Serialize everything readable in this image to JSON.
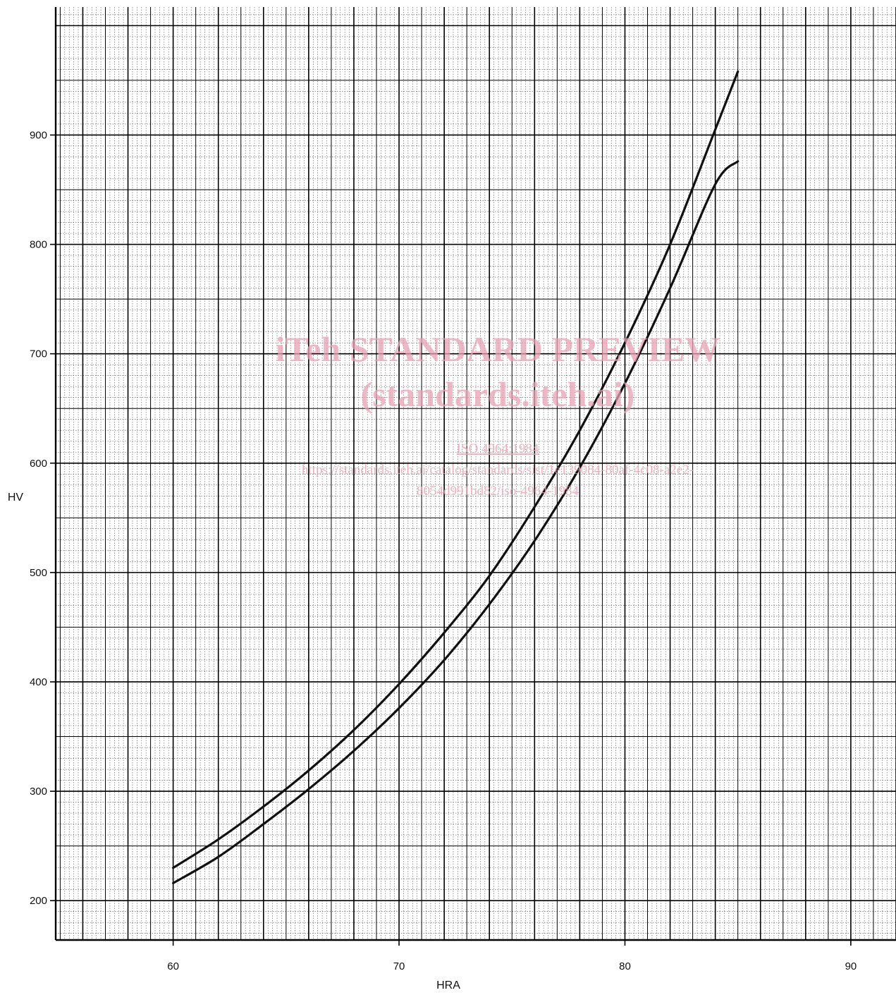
{
  "chart_data": {
    "type": "line",
    "title": "",
    "xlabel": "HRA",
    "ylabel": "HV",
    "xlim": [
      54.8,
      92
    ],
    "ylim": [
      164,
      1017
    ],
    "xticks": [
      60,
      70,
      80,
      90
    ],
    "yticks": [
      200,
      300,
      400,
      500,
      600,
      700,
      800,
      900
    ],
    "grid": true,
    "legend": "none",
    "series": [
      {
        "x": [
          60,
          62,
          64,
          66,
          68,
          70,
          72,
          74,
          76,
          78,
          80,
          82,
          84,
          85
        ],
        "y": [
          230,
          256,
          286,
          319,
          356,
          398,
          445,
          497,
          560,
          630,
          710,
          800,
          905,
          958
        ]
      },
      {
        "x": [
          60,
          62,
          64,
          66,
          68,
          70,
          72,
          74,
          76,
          78,
          80,
          82,
          84,
          85
        ],
        "y": [
          216,
          240,
          270,
          302,
          337,
          376,
          420,
          471,
          529,
          596,
          673,
          760,
          855,
          876
        ]
      }
    ]
  },
  "watermark": {
    "line1": "iTeh STANDARD PREVIEW",
    "line2": "(standards.iteh.ai)",
    "line3": "ISO 4964:1984",
    "line4": "https://standards.iteh.ai/catalog/standards/sist/1e139084-80af-4c08-a2e2-",
    "line5": "8054d991bd82/iso-4964-1984"
  },
  "colors": {
    "curve": "#111111",
    "grid_major": "#000000",
    "grid_minor": "#555555",
    "watermark": "#e8a0b4"
  }
}
